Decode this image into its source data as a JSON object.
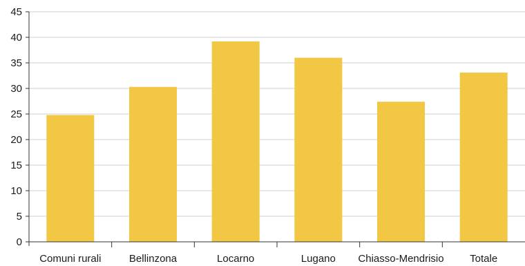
{
  "chart_data": {
    "type": "bar",
    "title": "",
    "xlabel": "",
    "ylabel": "",
    "categories": [
      "Comuni rurali",
      "Bellinzona",
      "Locarno",
      "Lugano",
      "Chiasso-Mendrisio",
      "Totale"
    ],
    "values": [
      24.8,
      30.3,
      39.2,
      36.0,
      27.4,
      33.1
    ],
    "ylim": [
      0,
      45
    ],
    "yticks": [
      "0",
      "5",
      "10",
      "15",
      "20",
      "25",
      "30",
      "35",
      "40",
      "45"
    ],
    "grid": true,
    "colors": {
      "bar": "#F1C744",
      "grid": "#cfcfcf",
      "axis": "#333333"
    }
  }
}
